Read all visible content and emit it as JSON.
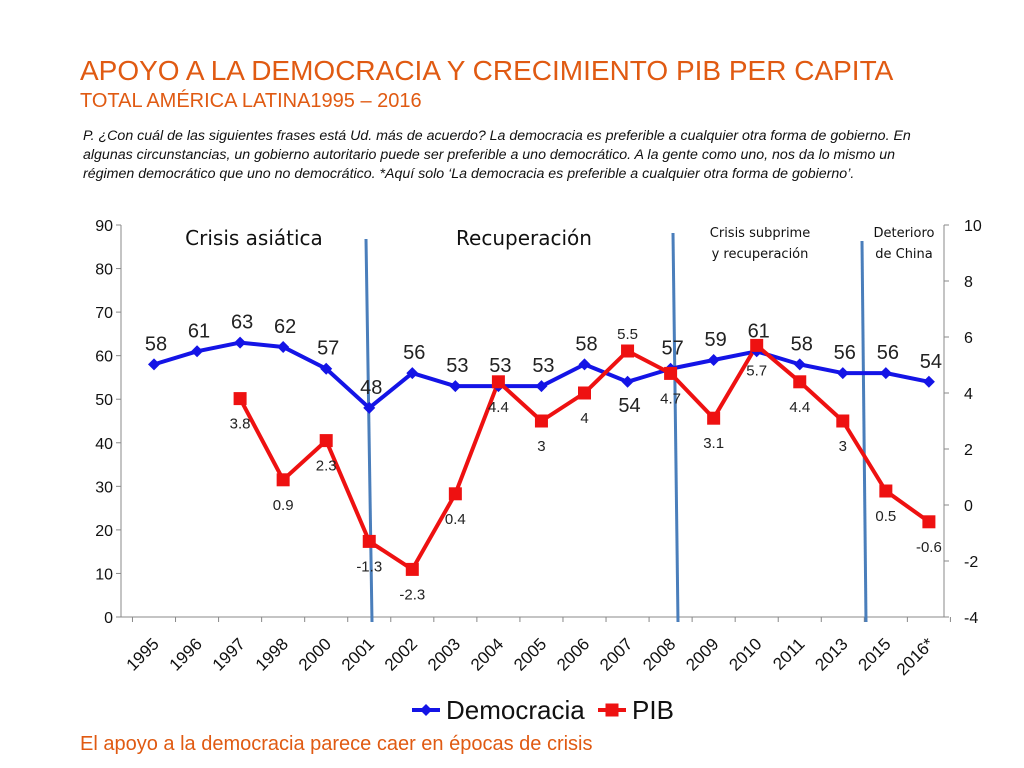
{
  "title": "APOYO A LA DEMOCRACIA Y CRECIMIENTO PIB PER CAPITA",
  "subtitle": "TOTAL AMÉRICA LATINA1995 – 2016",
  "question": "P. ¿Con cuál de las siguientes frases está Ud. más de acuerdo? La democracia es preferible a cualquier otra forma de gobierno. En algunas circunstancias, un gobierno autoritario puede ser preferible a uno democrático. A la gente como uno, nos da lo mismo un régimen democrático que uno no democrático. *Aquí solo ‘La democracia es preferible a cualquier otra forma de gobierno’.",
  "footer": "El apoyo a la democracia parece caer en épocas de crisis",
  "colors": {
    "title": "#E05A12",
    "democracia": "#1414E6",
    "pib": "#EE1111",
    "divider": "#4A7EBB"
  },
  "chart_data": {
    "type": "line",
    "categories": [
      "1995",
      "1996",
      "1997",
      "1998",
      "2000",
      "2001",
      "2002",
      "2003",
      "2004",
      "2005",
      "2006",
      "2007",
      "2008",
      "2009",
      "2010",
      "2011",
      "2013",
      "2015",
      "2016*"
    ],
    "series": [
      {
        "name": "Democracia",
        "axis": "left",
        "values": [
          58,
          61,
          63,
          62,
          57,
          48,
          56,
          53,
          53,
          53,
          58,
          54,
          57,
          59,
          61,
          58,
          56,
          56,
          54
        ],
        "labels": [
          "58",
          "61",
          "63",
          "62",
          "57",
          "48",
          "56",
          "53",
          "53",
          "53",
          "58",
          "54",
          "57",
          "59",
          "61",
          "58",
          "56",
          "56",
          "54"
        ]
      },
      {
        "name": "PIB",
        "axis": "right",
        "values": [
          null,
          null,
          3.8,
          0.9,
          2.3,
          -1.3,
          -2.3,
          0.4,
          4.4,
          3,
          4,
          5.5,
          4.7,
          3.1,
          5.7,
          4.4,
          3,
          0.5,
          -0.6
        ],
        "labels": [
          null,
          null,
          "3.8",
          "0.9",
          "2.3",
          "-1.3",
          "-2.3",
          "0.4",
          "4.4",
          "3",
          "4",
          "5.5",
          "4.7",
          "3.1",
          "5.7",
          "4.4",
          "3",
          "0.5",
          "-0.6"
        ]
      }
    ],
    "y_left": {
      "range": [
        0,
        90
      ],
      "ticks": [
        "0",
        "10",
        "20",
        "30",
        "40",
        "50",
        "60",
        "70",
        "80",
        "90"
      ]
    },
    "y_right": {
      "range": [
        -4,
        10
      ],
      "ticks": [
        "-4",
        "-2",
        "0",
        "2",
        "4",
        "6",
        "8",
        "10"
      ]
    },
    "periods": [
      {
        "label": "Crisis asiática"
      },
      {
        "label": "Recuperación"
      },
      {
        "label": "Crisis subprime y recuperación"
      },
      {
        "label": "Deterioro de China"
      }
    ],
    "legend": {
      "position": "bottom",
      "items": [
        "Democracia",
        "PIB"
      ]
    }
  }
}
